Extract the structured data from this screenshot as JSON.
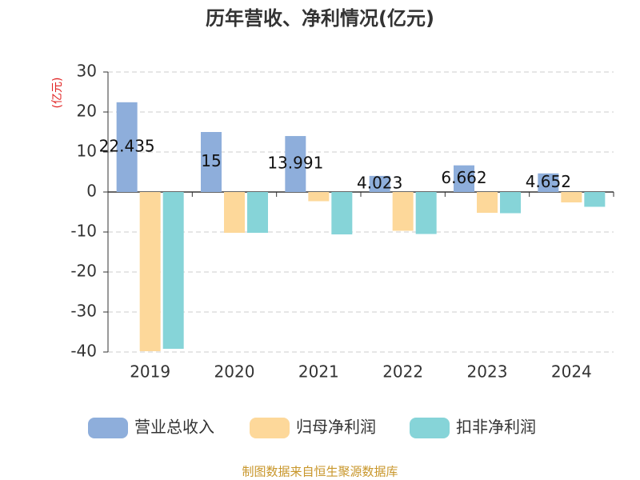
{
  "chart_data": {
    "type": "bar",
    "title": "历年营收、净利情况(亿元)",
    "y_label": "(亿元)",
    "categories": [
      "2019",
      "2020",
      "2021",
      "2022",
      "2023",
      "2024"
    ],
    "series": [
      {
        "name": "营业总收入",
        "color": "#8eaedb",
        "values": [
          22.435,
          15,
          13.991,
          4.023,
          6.662,
          4.652
        ]
      },
      {
        "name": "归母净利润",
        "color": "#fdd89a",
        "values": [
          -39.8,
          -10.2,
          -2.3,
          -9.7,
          -5.2,
          -2.6
        ]
      },
      {
        "name": "扣非净利润",
        "color": "#86d4d8",
        "values": [
          -39.2,
          -10.2,
          -10.6,
          -10.5,
          -5.3,
          -3.7
        ]
      }
    ],
    "ylim": [
      -40,
      30
    ],
    "yticks": [
      -40,
      -30,
      -20,
      -10,
      0,
      10,
      20,
      30
    ],
    "grid": true,
    "source": "制图数据来自恒生聚源数据库"
  }
}
